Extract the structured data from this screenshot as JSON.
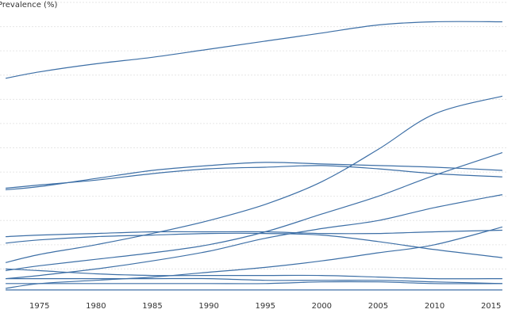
{
  "chart_data": {
    "type": "line",
    "title": "",
    "xlabel": "",
    "ylabel": "Prevalence (%)",
    "xlim": [
      1971.5,
      2016.5
    ],
    "ylim": [
      0,
      18
    ],
    "x_ticks": [
      1975,
      1980,
      1985,
      1990,
      1995,
      2000,
      2005,
      2010,
      2015
    ],
    "x_tick_labels": [
      "1975",
      "1980",
      "1985",
      "1990",
      "1995",
      "2000",
      "2005",
      "2010",
      "2015"
    ],
    "y_gridlines": [
      0,
      1.5,
      3,
      4.5,
      6,
      7.5,
      9,
      10.5,
      12,
      13.5,
      15,
      16.5,
      18
    ],
    "grid": true,
    "legend": "none",
    "line_color": "#3d6fa6",
    "x": [
      1972,
      1975,
      1980,
      1985,
      1990,
      1995,
      2000,
      2005,
      2010,
      2016
    ],
    "series": [
      {
        "values": [
          13.3,
          13.7,
          14.2,
          14.6,
          15.1,
          15.6,
          16.1,
          16.6,
          16.8,
          16.8
        ]
      },
      {
        "values": [
          1.9,
          2.4,
          3.0,
          3.7,
          4.5,
          5.5,
          6.9,
          8.9,
          11.1,
          12.2
        ]
      },
      {
        "values": [
          6.4,
          6.6,
          7.1,
          7.6,
          7.9,
          8.1,
          8.0,
          7.9,
          7.8,
          7.6
        ]
      },
      {
        "values": [
          6.5,
          6.7,
          7.0,
          7.4,
          7.7,
          7.8,
          7.9,
          7.7,
          7.4,
          7.2
        ]
      },
      {
        "values": [
          1.4,
          1.7,
          2.1,
          2.5,
          3.0,
          3.8,
          4.9,
          6.0,
          7.3,
          8.7
        ]
      },
      {
        "values": [
          3.5,
          3.6,
          3.7,
          3.8,
          3.8,
          3.8,
          3.7,
          3.7,
          3.8,
          3.9
        ]
      },
      {
        "values": [
          3.1,
          3.3,
          3.5,
          3.6,
          3.7,
          3.7,
          3.6,
          3.2,
          2.7,
          2.2
        ]
      },
      {
        "values": [
          0.9,
          1.1,
          1.5,
          2.0,
          2.6,
          3.4,
          4.0,
          4.5,
          5.3,
          6.1
        ]
      },
      {
        "values": [
          0.3,
          0.6,
          0.8,
          1.0,
          1.3,
          1.6,
          2.0,
          2.5,
          3.0,
          4.1
        ]
      },
      {
        "values": [
          1.5,
          1.4,
          1.2,
          1.1,
          1.1,
          1.1,
          1.1,
          1.0,
          0.9,
          0.9
        ]
      },
      {
        "values": [
          0.9,
          0.9,
          0.9,
          0.9,
          0.9,
          0.8,
          0.8,
          0.8,
          0.7,
          0.6
        ]
      },
      {
        "values": [
          0.6,
          0.6,
          0.6,
          0.6,
          0.6,
          0.6,
          0.7,
          0.7,
          0.6,
          0.6
        ]
      },
      {
        "values": [
          0.2,
          0.2,
          0.2,
          0.2,
          0.2,
          0.2,
          0.2,
          0.2,
          0.2,
          0.2
        ]
      }
    ]
  }
}
